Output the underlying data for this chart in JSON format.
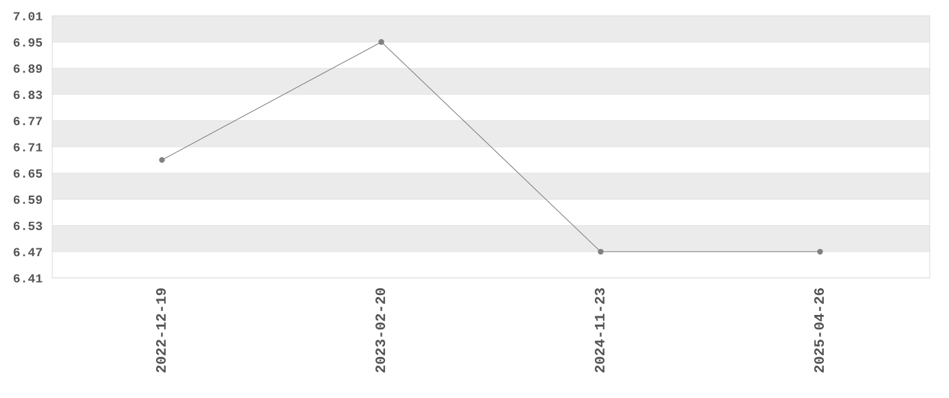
{
  "chart_data": {
    "type": "line",
    "categories": [
      "2022-12-19",
      "2023-02-20",
      "2024-11-23",
      "2025-04-26"
    ],
    "series": [
      {
        "color": "#808080",
        "values": [
          6.68,
          6.95,
          6.47,
          6.47
        ]
      }
    ],
    "ylim": [
      6.41,
      7.01
    ],
    "yticks": [
      6.41,
      6.47,
      6.53,
      6.59,
      6.65,
      6.71,
      6.77,
      6.83,
      6.89,
      6.95,
      7.01
    ],
    "grid": "y",
    "marker": "circle",
    "line_style": "solid"
  }
}
